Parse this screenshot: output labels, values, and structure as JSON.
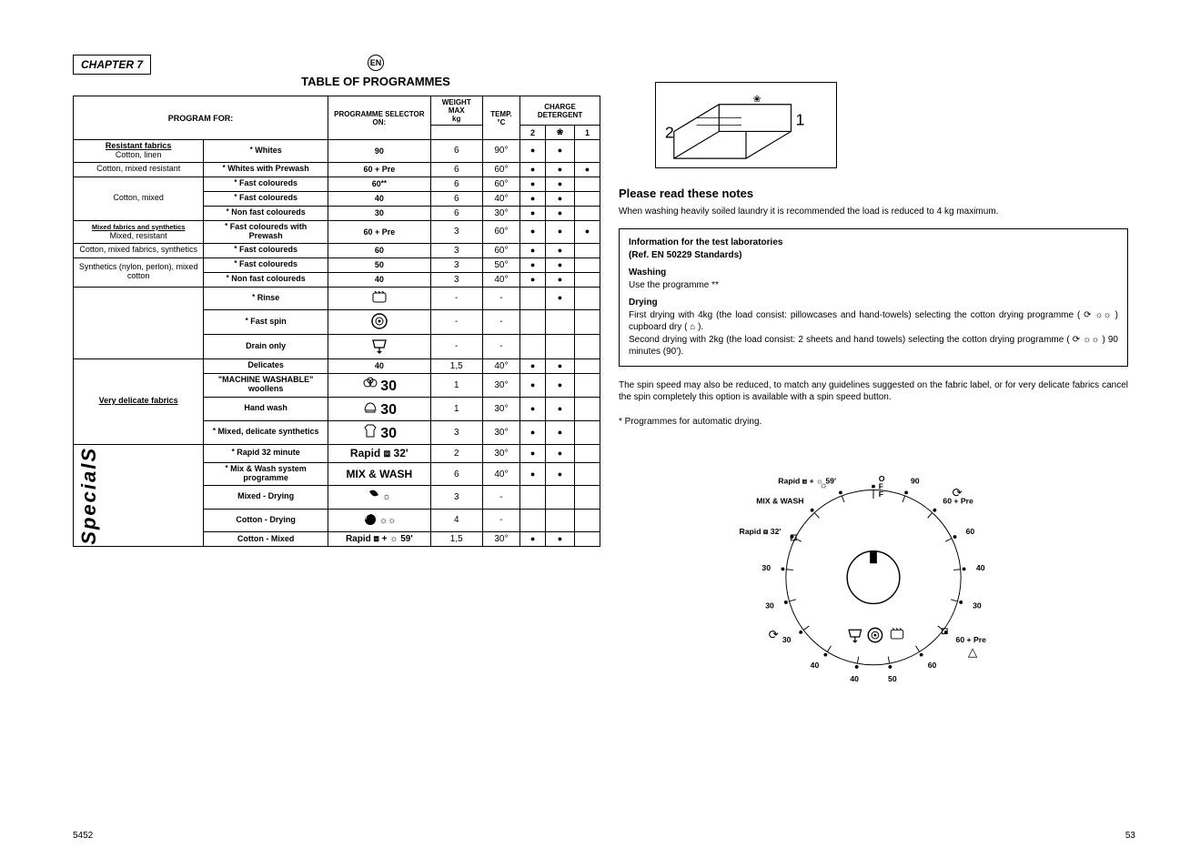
{
  "chapter": "CHAPTER 7",
  "lang_badge": "EN",
  "title": "TABLE OF PROGRAMMES",
  "header": {
    "program_for": "PROGRAM FOR:",
    "programme_selector": "PROGRAMME SELECTOR ON:",
    "weight_max": "WEIGHT MAX",
    "weight_unit": "kg",
    "temp": "TEMP. °C",
    "charge_detergent": "CHARGE DETERGENT",
    "det_cols": {
      "c1": "2",
      "c2": "❀",
      "c3": "1"
    }
  },
  "groups": [
    {
      "left_label": "Resistant fabrics",
      "left_sub": "Cotton, linen",
      "rows": [
        {
          "desc": "Whites",
          "ast": "*",
          "selector": "90",
          "kg": "6",
          "temp": "90°",
          "d2": "●",
          "df": "●",
          "d1": ""
        }
      ]
    },
    {
      "left_label": "Cotton, mixed resistant",
      "rows": [
        {
          "desc": "Whites with Prewash",
          "ast": "*",
          "selector": "60 + Pre",
          "kg": "6",
          "temp": "60°",
          "d2": "●",
          "df": "●",
          "d1": "●"
        }
      ]
    },
    {
      "left_label": "Cotton, mixed",
      "rows": [
        {
          "desc": "Fast coloureds",
          "ast": "*",
          "selector": "60",
          "sup": "**",
          "kg": "6",
          "temp": "60°",
          "d2": "●",
          "df": "●",
          "d1": ""
        },
        {
          "desc": "Fast coloureds",
          "ast": "*",
          "selector": "40",
          "kg": "6",
          "temp": "40°",
          "d2": "●",
          "df": "●",
          "d1": ""
        },
        {
          "desc": "Non fast coloureds",
          "ast": "*",
          "selector": "30",
          "kg": "6",
          "temp": "30°",
          "d2": "●",
          "df": "●",
          "d1": ""
        }
      ]
    },
    {
      "left_label": "Mixed fabrics and synthetics",
      "left_sub": "Mixed, resistant",
      "rows": [
        {
          "desc": "Fast coloureds with Prewash",
          "ast": "*",
          "selector": "60 + Pre",
          "kg": "3",
          "temp": "60°",
          "d2": "●",
          "df": "●",
          "d1": "●"
        }
      ]
    },
    {
      "left_label": "Cotton, mixed fabrics, synthetics",
      "rows": [
        {
          "desc": "Fast coloureds",
          "ast": "*",
          "selector": "60",
          "kg": "3",
          "temp": "60°",
          "d2": "●",
          "df": "●",
          "d1": ""
        }
      ]
    },
    {
      "left_label": "Synthetics (nylon, perlon), mixed cotton",
      "rows": [
        {
          "desc": "Fast coloureds",
          "ast": "*",
          "selector": "50",
          "kg": "3",
          "temp": "50°",
          "d2": "●",
          "df": "●",
          "d1": ""
        },
        {
          "desc": "Non fast coloureds",
          "ast": "*",
          "selector": "40",
          "kg": "3",
          "temp": "40°",
          "d2": "●",
          "df": "●",
          "d1": ""
        }
      ]
    },
    {
      "left_label": "",
      "rows": [
        {
          "desc": "Rinse",
          "ast": "*",
          "selector_icon": "rinse",
          "kg": "-",
          "temp": "-",
          "d2": "",
          "df": "●",
          "d1": ""
        },
        {
          "desc": "Fast spin",
          "ast": "*",
          "selector_icon": "spin",
          "kg": "-",
          "temp": "-",
          "d2": "",
          "df": "",
          "d1": ""
        },
        {
          "desc": "Drain only",
          "selector_icon": "drain",
          "kg": "-",
          "temp": "-",
          "d2": "",
          "df": "",
          "d1": ""
        }
      ]
    },
    {
      "left_label": "Very delicate fabrics",
      "left_bold_underline": true,
      "rows": [
        {
          "desc": "Delicates",
          "selector": "40",
          "kg": "1,5",
          "temp": "40°",
          "d2": "●",
          "df": "●",
          "d1": ""
        },
        {
          "desc": "\"MACHINE WASHABLE\" woollens",
          "selector": "30",
          "selector_icon_prefix": "wool",
          "kg": "1",
          "temp": "30°",
          "d2": "●",
          "df": "●",
          "d1": ""
        },
        {
          "desc": "Hand wash",
          "selector": "30",
          "selector_icon_prefix": "hand",
          "kg": "1",
          "temp": "30°",
          "d2": "●",
          "df": "●",
          "d1": ""
        },
        {
          "desc": "Mixed, delicate synthetics",
          "ast": "*",
          "selector": "30",
          "selector_icon_prefix": "shirt",
          "kg": "3",
          "temp": "30°",
          "d2": "●",
          "df": "●",
          "d1": ""
        }
      ]
    }
  ],
  "specials_label": "SpecialS",
  "specials": [
    {
      "desc": "Rapid 32 minute",
      "ast": "*",
      "selector": "Rapid ⧈ 32'",
      "kg": "2",
      "temp": "30°",
      "d2": "●",
      "df": "●",
      "d1": ""
    },
    {
      "desc": "Mix & Wash system programme",
      "ast": "*",
      "selector": "MIX & WASH",
      "bold": true,
      "kg": "6",
      "temp": "40°",
      "d2": "●",
      "df": "●",
      "d1": ""
    },
    {
      "desc": "Mixed - Drying",
      "selector_icon": "mixed-dry",
      "kg": "3",
      "temp": "-",
      "d2": "",
      "df": "",
      "d1": ""
    },
    {
      "desc": "Cotton - Drying",
      "selector_icon": "cotton-dry",
      "kg": "4",
      "temp": "-",
      "d2": "",
      "df": "",
      "d1": ""
    },
    {
      "desc": "Cotton - Mixed",
      "selector": "Rapid ⧈ + ☼ 59'",
      "kg": "1,5",
      "temp": "30°",
      "d2": "●",
      "df": "●",
      "d1": ""
    }
  ],
  "tray": {
    "label1": "1",
    "label2": "2"
  },
  "notes": {
    "heading": "Please read these notes",
    "line1": "When washing heavily soiled laundry it is recommended the load is reduced to 4 kg maximum.",
    "lab_title": "Information for the test laboratories",
    "lab_ref": "(Ref. EN 50229 Standards)",
    "washing_h": "Washing",
    "washing_t": "Use the programme **",
    "drying_h": "Drying",
    "drying_t1": "First drying with 4kg (the load consist: pillowcases and hand-towels) selecting the cotton drying programme ( ⟳ ☼☼ ) cupboard dry ( ⌂ ).",
    "drying_t2": "Second drying with 2kg (the load consist: 2 sheets and hand towels) selecting the cotton drying programme ( ⟳ ☼☼ ) 90 minutes (90').",
    "spin_note": "The spin speed may also be reduced, to match any guidelines suggested on the fabric label, or for very delicate fabrics cancel the spin completely this option is available with a spin speed button.",
    "auto_dry": "* Programmes for automatic drying."
  },
  "dial": {
    "labels": [
      "OFF",
      "90",
      "60 + Pre",
      "60",
      "40",
      "30",
      "60 + Pre",
      "60",
      "50",
      "40",
      "40",
      "30",
      "30",
      "30",
      "Rapid ⧈ 32'",
      "MIX & WASH",
      "Rapid ⧈ + ☼ 59'"
    ],
    "top_right_label": "OFF"
  },
  "page_left_num": "52",
  "page_right_num": "53",
  "doc_num": "54"
}
